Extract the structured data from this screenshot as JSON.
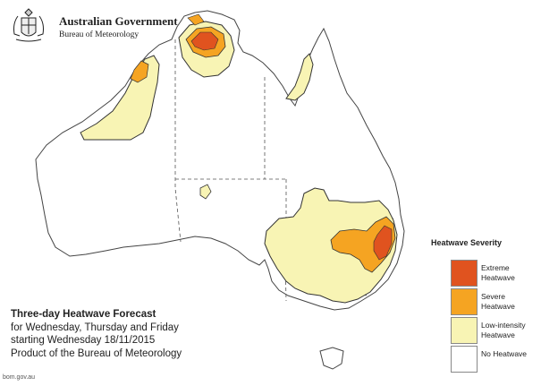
{
  "header": {
    "organisation": "Australian Government",
    "agency": "Bureau of Meteorology"
  },
  "caption": {
    "title": "Three-day Heatwave Forecast",
    "line1": "for Wednesday, Thursday and Friday",
    "line2": "starting Wednesday 18/11/2015",
    "line3": "Product of the Bureau of Meteorology"
  },
  "legend": {
    "title": "Heatwave Severity",
    "items": [
      {
        "label": "Extreme Heatwave",
        "color": "#e0531f"
      },
      {
        "label": "Severe Heatwave",
        "color": "#f5a422"
      },
      {
        "label": "Low-intensity Heatwave",
        "color": "#f8f4b4"
      },
      {
        "label": "No Heatwave",
        "color": "#ffffff"
      }
    ]
  },
  "footer": {
    "credit": "bom.gov.au"
  },
  "colors": {
    "land": "#ffffff",
    "coast": "#444444",
    "border": "#555555"
  }
}
